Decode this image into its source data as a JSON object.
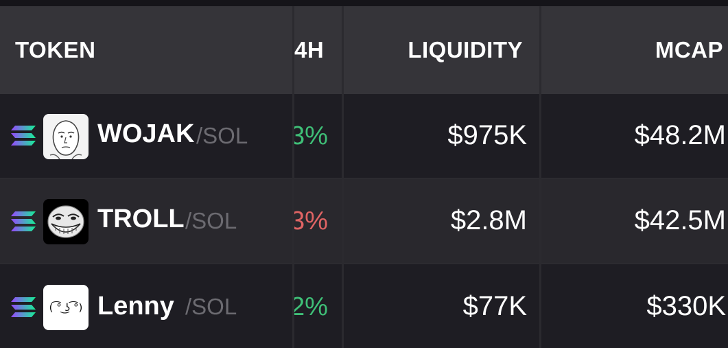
{
  "colors": {
    "background": "#1e1d23",
    "header_bg": "#353439",
    "row_alt_bg": "#29282d",
    "positive": "#3fbf77",
    "negative": "#e06464",
    "pair_text": "#6c6b71"
  },
  "table": {
    "headers": {
      "token": "TOKEN",
      "change_24h": "4H",
      "liquidity": "LIQUIDITY",
      "mcap": "MCAP"
    },
    "rows": [
      {
        "chain_icon": "solana-icon",
        "avatar_icon": "wojak-face-icon",
        "name": "WOJAK",
        "pair": "/SOL",
        "change": "3%",
        "change_direction": "up",
        "liquidity": "$975K",
        "mcap": "$48.2M"
      },
      {
        "chain_icon": "solana-icon",
        "avatar_icon": "trollface-icon",
        "name": "TROLL",
        "pair": "/SOL",
        "change": "3%",
        "change_direction": "down",
        "liquidity": "$2.8M",
        "mcap": "$42.5M"
      },
      {
        "chain_icon": "solana-icon",
        "avatar_icon": "lenny-face-icon",
        "avatar_text": "( ͡° ͜ʖ ͡°)",
        "name": "Lenny",
        "pair": "/SOL",
        "change": "2%",
        "change_direction": "up",
        "liquidity": "$77K",
        "mcap": "$330K"
      }
    ]
  }
}
